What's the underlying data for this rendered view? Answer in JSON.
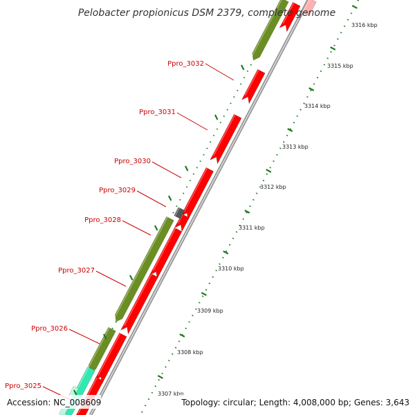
{
  "title": "Pelobacter propionicus DSM 2379, complete genome",
  "footer": {
    "accession": "Accession: NC_008609",
    "topology": "Topology: circular; Length: 4,008,000 bp; Genes: 3,643"
  },
  "gene_labels": [
    "Ppro_3032",
    "Ppro_3031",
    "Ppro_3030",
    "Ppro_3029",
    "Ppro_3028",
    "Ppro_3027",
    "Ppro_3026",
    "Ppro_3025"
  ],
  "kbp_labels": [
    "3316 kbp",
    "3315 kbp",
    "3314 kbp",
    "3313 kbp",
    "3312 kbp",
    "3311 kbp",
    "3310 kbp",
    "3309 kbp",
    "3308 kbp",
    "3307 kbp"
  ],
  "colors": {
    "reverse_strand": "#6b8e23",
    "forward_strand": "#ff0000",
    "rna": "#555555",
    "highlight": "#33e8b0",
    "backbone": "#888888",
    "ticks": "#1f7a1f",
    "label": "#cc0000"
  }
}
